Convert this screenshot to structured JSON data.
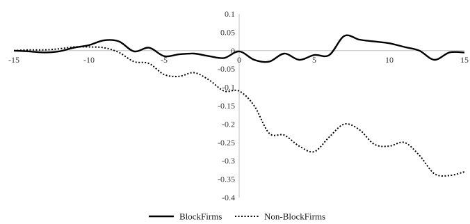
{
  "chart_data": {
    "type": "line",
    "xlim": [
      -15,
      15
    ],
    "ylim": [
      -0.4,
      0.1
    ],
    "x_ticks": [
      "-15",
      "-10",
      "-5",
      "0",
      "5",
      "10",
      "15"
    ],
    "y_ticks": [
      "0.1",
      "0.05",
      "0",
      "-0.05",
      "-0.1",
      "-0.15",
      "-0.2",
      "-0.25",
      "-0.3",
      "-0.35",
      "-0.4"
    ],
    "grid": false,
    "legend_position": "bottom",
    "series": [
      {
        "name": "BlockFirms",
        "style": "solid",
        "color": "#000000",
        "x": [
          -15,
          -14,
          -13,
          -12,
          -11,
          -10,
          -9,
          -8,
          -7,
          -6,
          -5,
          -4,
          -3,
          -2,
          -1,
          0,
          1,
          2,
          3,
          4,
          5,
          6,
          7,
          8,
          9,
          10,
          11,
          12,
          13,
          14,
          15
        ],
        "y": [
          0,
          -0.002,
          -0.005,
          -0.002,
          0.008,
          0.015,
          0.028,
          0.025,
          -0.002,
          0.008,
          -0.015,
          -0.01,
          -0.008,
          -0.015,
          -0.02,
          -0.002,
          -0.025,
          -0.03,
          -0.008,
          -0.025,
          -0.012,
          -0.012,
          0.04,
          0.03,
          0.025,
          0.02,
          0.01,
          0.0,
          -0.025,
          -0.005,
          -0.005
        ]
      },
      {
        "name": "Non-BlockFirms",
        "style": "dotted",
        "color": "#000000",
        "x": [
          -15,
          -14,
          -13,
          -12,
          -11,
          -10,
          -9,
          -8,
          -7,
          -6,
          -5,
          -4,
          -3,
          -2,
          -1,
          0,
          1,
          2,
          3,
          4,
          5,
          6,
          7,
          8,
          9,
          10,
          11,
          12,
          13,
          14,
          15
        ],
        "y": [
          0,
          0.002,
          0.002,
          0.005,
          0.01,
          0.01,
          0.008,
          -0.005,
          -0.03,
          -0.035,
          -0.065,
          -0.07,
          -0.06,
          -0.08,
          -0.11,
          -0.11,
          -0.15,
          -0.225,
          -0.23,
          -0.26,
          -0.275,
          -0.235,
          -0.2,
          -0.215,
          -0.255,
          -0.26,
          -0.25,
          -0.285,
          -0.335,
          -0.34,
          -0.33
        ]
      }
    ]
  }
}
